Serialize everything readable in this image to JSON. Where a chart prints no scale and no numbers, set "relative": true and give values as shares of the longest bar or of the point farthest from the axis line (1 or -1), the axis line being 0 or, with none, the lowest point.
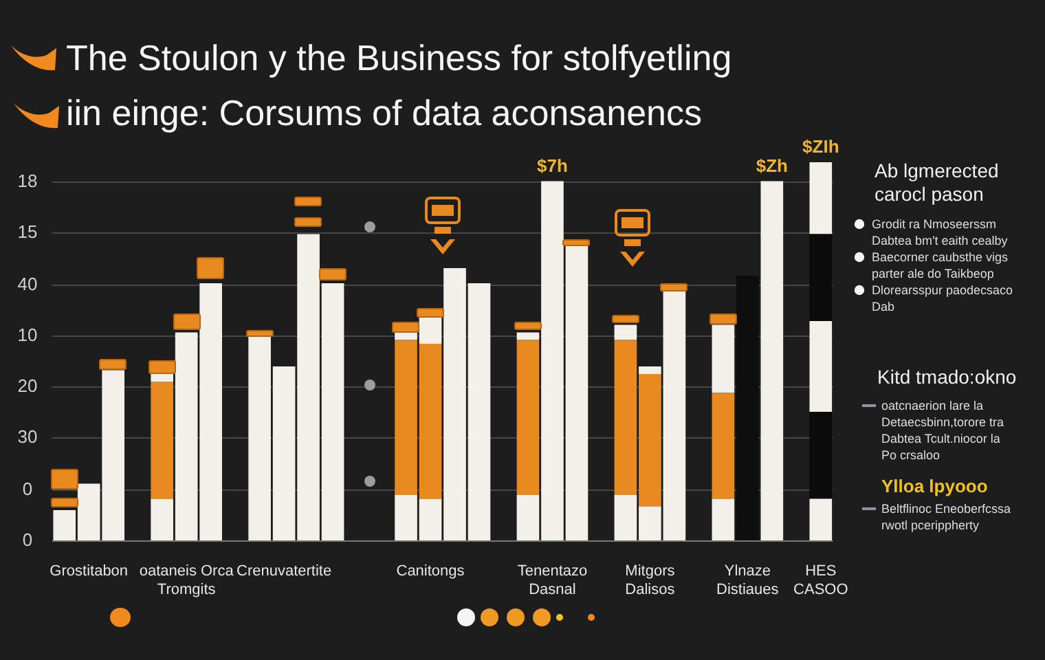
{
  "chart_data": {
    "type": "bar",
    "title": "The Stoulon y the Business for stolfyetling\niin einge: Corsums of data aconsanencs",
    "categories": [
      null,
      "Grostitabon",
      null,
      null,
      null,
      "oataneis Orca\nTromgits",
      null,
      null,
      null,
      "Crenuvatertite",
      null,
      null,
      null,
      null,
      null,
      "Canitongs",
      null,
      null,
      null,
      null,
      "Tenentazo\nDasnal",
      null,
      null,
      null,
      "Mitgors\nDalisos",
      null,
      null,
      null,
      "Ylnaze\nDistiaues",
      null,
      null,
      "HES\nCASOO"
    ],
    "relative": true,
    "stacked": true,
    "series": [
      {
        "colors": [
          "#f3f0ea",
          "#f3f0ea",
          "#f3f0ea",
          "#f3f0ea",
          "#f3f0ea",
          "#f3f0ea",
          "#f3f0ea",
          "#f3f0ea",
          "#f3f0ea",
          "#f3f0ea",
          "#f3f0ea",
          "#f3f0ea",
          "#f3f0ea",
          "#f3f0ea",
          "#f3f0ea",
          "#f3f0ea",
          "#f3f0ea",
          "#f3f0ea",
          "#f3f0ea",
          "#f3f0ea",
          "#f3f0ea",
          "#f3f0ea",
          "#f3f0ea",
          "#f3f0ea",
          "#f3f0ea",
          "#f3f0ea",
          "#f3f0ea",
          "#f3f0ea",
          "#0e0e0e",
          "#f3f0ea",
          "#f3f0ea",
          "#f3f0ea"
        ],
        "values": [
          0.08,
          0.15,
          0.45,
          null,
          0.11,
          0.55,
          0.68,
          null,
          0.54,
          0.46,
          0.81,
          0.68,
          null,
          null,
          0.12,
          0.11,
          0.72,
          0.68,
          null,
          0.12,
          0.95,
          0.78,
          null,
          0.12,
          0.09,
          0.66,
          null,
          0.11,
          0.7,
          0.95,
          null,
          0.11
        ]
      },
      {
        "colors": [
          "#e88a1f",
          "#e88a1f",
          "#e88a1f",
          "#e88a1f",
          "#e88a1f",
          "#e88a1f",
          "#e88a1f",
          "#e88a1f",
          "#e88a1f",
          "#e88a1f",
          "#e88a1f",
          "#e88a1f",
          "#e88a1f",
          "#e88a1f",
          "#e88a1f",
          "#e88a1f",
          "#e88a1f",
          "#e88a1f",
          "#e88a1f",
          "#e88a1f",
          "#e88a1f",
          "#e88a1f",
          "#e88a1f",
          "#e88a1f",
          "#e88a1f",
          "#e88a1f",
          "#e88a1f",
          "#e88a1f",
          "#e88a1f",
          "#e88a1f",
          "#e88a1f",
          "#0b0b0b"
        ],
        "values": [
          null,
          null,
          null,
          null,
          0.31,
          null,
          null,
          null,
          null,
          null,
          null,
          null,
          null,
          null,
          0.41,
          0.41,
          null,
          null,
          null,
          0.41,
          null,
          null,
          null,
          0.41,
          0.35,
          null,
          null,
          0.28,
          null,
          null,
          null,
          0.23
        ]
      },
      {
        "color": "#f3f0ea",
        "values": [
          null,
          null,
          null,
          null,
          0.02,
          null,
          null,
          null,
          null,
          null,
          null,
          null,
          null,
          null,
          0.02,
          0.07,
          null,
          null,
          null,
          0.02,
          null,
          null,
          null,
          0.04,
          0.02,
          null,
          null,
          0.18,
          null,
          null,
          null,
          0.24
        ]
      },
      {
        "color": "#0b0b0b",
        "values": [
          null,
          null,
          null,
          null,
          null,
          null,
          null,
          null,
          null,
          null,
          null,
          null,
          null,
          null,
          null,
          null,
          null,
          null,
          null,
          null,
          null,
          null,
          null,
          null,
          null,
          null,
          null,
          null,
          null,
          null,
          null,
          0.23
        ]
      },
      {
        "color": "#f3f0ea",
        "values": [
          null,
          null,
          null,
          null,
          null,
          null,
          null,
          null,
          null,
          null,
          null,
          null,
          null,
          null,
          null,
          null,
          null,
          null,
          null,
          null,
          null,
          null,
          null,
          null,
          null,
          null,
          null,
          null,
          null,
          null,
          null,
          0.19
        ]
      }
    ],
    "grid": "y",
    "annotations": [
      "0",
      "0",
      "30",
      "20",
      "10",
      "40",
      "15",
      "18",
      "$Zh",
      {
        "text": "$7h",
        "x": "Tenentazo\nDasnal",
        "y": 0.95
      },
      {
        "text": "$ZIh",
        "x": "HES\nCASOO",
        "y": 1
      },
      "Ab lgmerected\ncarocl pason",
      "Grodit ra Nmoseerssm\nDabtea bm't eaith cealby",
      "Baecorner caubsthe vigs\nparter ale do Taikbeop",
      "Dlorearsspur paodecsaco\nDab",
      "Kitd tmado:okno",
      "oatcnaerion lare la\nDetaecsbinn,torore tra\nDabtea Tcult.niocor la\nPo crsaloo",
      "Ylloa lpyooo",
      "Beltflinoc Eneoberfcssa\nrwotl pcerippherty"
    ]
  }
}
